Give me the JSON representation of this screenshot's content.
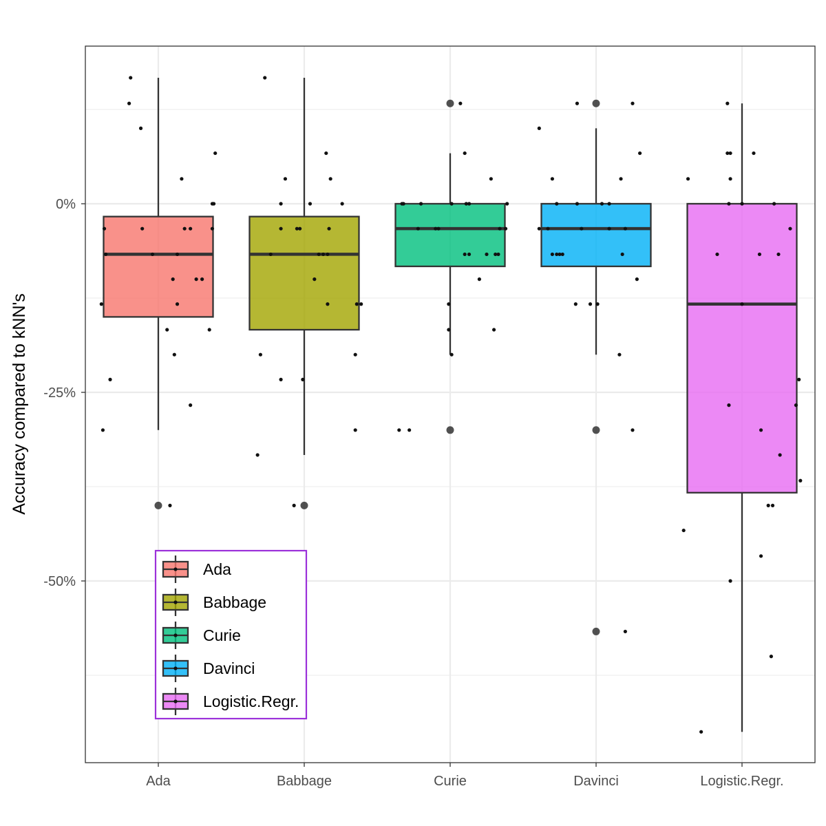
{
  "chart_data": {
    "type": "box",
    "title": "",
    "xlabel": "",
    "ylabel": "Accuracy compared to kNN's",
    "ylim": [
      -74,
      21
    ],
    "y_ticks": [
      0,
      -25,
      -50
    ],
    "y_tick_labels": [
      "0%",
      "-25%",
      "-50%"
    ],
    "y_minor_gridlines": [
      12.5,
      -12.5,
      -37.5,
      -62.5
    ],
    "grid": true,
    "legend": {
      "position": "inside-bottom-left",
      "border_color": "#9B30D9",
      "entries": [
        "Ada",
        "Babbage",
        "Curie",
        "Davinci",
        "Logistic.Regr."
      ]
    },
    "categories": [
      "Ada",
      "Babbage",
      "Curie",
      "Davinci",
      "Logistic.Regr."
    ],
    "colors": [
      "#F8766D",
      "#A3A500",
      "#00BF7D",
      "#00B0F6",
      "#E76BF3"
    ],
    "boxes": [
      {
        "name": "Ada",
        "whisker_low": -30,
        "q1": -15,
        "median": -6.7,
        "q3": -1.7,
        "whisker_high": 16.7,
        "outliers": [
          -40
        ]
      },
      {
        "name": "Babbage",
        "whisker_low": -33.3,
        "q1": -16.7,
        "median": -6.7,
        "q3": -1.7,
        "whisker_high": 16.7,
        "outliers": [
          -40
        ]
      },
      {
        "name": "Curie",
        "whisker_low": -20,
        "q1": -8.3,
        "median": -3.3,
        "q3": 0,
        "whisker_high": 6.7,
        "outliers": [
          13.3,
          -30
        ]
      },
      {
        "name": "Davinci",
        "whisker_low": -20,
        "q1": -8.3,
        "median": -3.3,
        "q3": 0,
        "whisker_high": 10,
        "outliers": [
          13.3,
          -30,
          -56.7
        ]
      },
      {
        "name": "Logistic.Regr.",
        "whisker_low": -70,
        "q1": -38.3,
        "median": -13.3,
        "q3": 0,
        "whisker_high": 13.3,
        "outliers": []
      }
    ],
    "points": [
      {
        "cat": 0,
        "jitter": -0.19,
        "value": 16.7
      },
      {
        "cat": 0,
        "jitter": -0.2,
        "value": 13.3
      },
      {
        "cat": 0,
        "jitter": -0.12,
        "value": 10
      },
      {
        "cat": 0,
        "jitter": 0.39,
        "value": 6.7
      },
      {
        "cat": 0,
        "jitter": 0.16,
        "value": 3.3
      },
      {
        "cat": 0,
        "jitter": 0.37,
        "value": 0
      },
      {
        "cat": 0,
        "jitter": 0.38,
        "value": 0
      },
      {
        "cat": 0,
        "jitter": -0.37,
        "value": -3.3
      },
      {
        "cat": 0,
        "jitter": -0.11,
        "value": -3.3
      },
      {
        "cat": 0,
        "jitter": 0.18,
        "value": -3.3
      },
      {
        "cat": 0,
        "jitter": 0.22,
        "value": -3.3
      },
      {
        "cat": 0,
        "jitter": 0.37,
        "value": -3.3
      },
      {
        "cat": 0,
        "jitter": -0.36,
        "value": -6.7
      },
      {
        "cat": 0,
        "jitter": -0.04,
        "value": -6.7
      },
      {
        "cat": 0,
        "jitter": 0.13,
        "value": -6.7
      },
      {
        "cat": 0,
        "jitter": 0.1,
        "value": -10
      },
      {
        "cat": 0,
        "jitter": 0.26,
        "value": -10
      },
      {
        "cat": 0,
        "jitter": 0.3,
        "value": -10
      },
      {
        "cat": 0,
        "jitter": -0.39,
        "value": -13.3
      },
      {
        "cat": 0,
        "jitter": 0.13,
        "value": -13.3
      },
      {
        "cat": 0,
        "jitter": 0.06,
        "value": -16.7
      },
      {
        "cat": 0,
        "jitter": 0.35,
        "value": -16.7
      },
      {
        "cat": 0,
        "jitter": 0.11,
        "value": -20
      },
      {
        "cat": 0,
        "jitter": -0.33,
        "value": -23.3
      },
      {
        "cat": 0,
        "jitter": 0.22,
        "value": -26.7
      },
      {
        "cat": 0,
        "jitter": -0.38,
        "value": -30
      },
      {
        "cat": 0,
        "jitter": 0.08,
        "value": -40
      },
      {
        "cat": 1,
        "jitter": -0.27,
        "value": 16.7
      },
      {
        "cat": 1,
        "jitter": 0.15,
        "value": 6.7
      },
      {
        "cat": 1,
        "jitter": -0.13,
        "value": 3.3
      },
      {
        "cat": 1,
        "jitter": 0.18,
        "value": 3.3
      },
      {
        "cat": 1,
        "jitter": -0.16,
        "value": 0
      },
      {
        "cat": 1,
        "jitter": 0.04,
        "value": 0
      },
      {
        "cat": 1,
        "jitter": 0.26,
        "value": 0
      },
      {
        "cat": 1,
        "jitter": -0.16,
        "value": -3.3
      },
      {
        "cat": 1,
        "jitter": -0.05,
        "value": -3.3
      },
      {
        "cat": 1,
        "jitter": -0.03,
        "value": -3.3
      },
      {
        "cat": 1,
        "jitter": 0.17,
        "value": -3.3
      },
      {
        "cat": 1,
        "jitter": -0.23,
        "value": -6.7
      },
      {
        "cat": 1,
        "jitter": 0.1,
        "value": -6.7
      },
      {
        "cat": 1,
        "jitter": 0.13,
        "value": -6.7
      },
      {
        "cat": 1,
        "jitter": 0.16,
        "value": -6.7
      },
      {
        "cat": 1,
        "jitter": 0.07,
        "value": -10
      },
      {
        "cat": 1,
        "jitter": 0.16,
        "value": -13.3
      },
      {
        "cat": 1,
        "jitter": 0.36,
        "value": -13.3
      },
      {
        "cat": 1,
        "jitter": 0.39,
        "value": -13.3
      },
      {
        "cat": 1,
        "jitter": -0.3,
        "value": -20
      },
      {
        "cat": 1,
        "jitter": 0.35,
        "value": -20
      },
      {
        "cat": 1,
        "jitter": -0.16,
        "value": -23.3
      },
      {
        "cat": 1,
        "jitter": -0.01,
        "value": -23.3
      },
      {
        "cat": 1,
        "jitter": 0.35,
        "value": -30
      },
      {
        "cat": 1,
        "jitter": -0.32,
        "value": -33.3
      },
      {
        "cat": 1,
        "jitter": -0.07,
        "value": -40
      },
      {
        "cat": 2,
        "jitter": 0.07,
        "value": 13.3
      },
      {
        "cat": 2,
        "jitter": 0.1,
        "value": 6.7
      },
      {
        "cat": 2,
        "jitter": 0.28,
        "value": 3.3
      },
      {
        "cat": 2,
        "jitter": -0.33,
        "value": 0
      },
      {
        "cat": 2,
        "jitter": -0.32,
        "value": 0
      },
      {
        "cat": 2,
        "jitter": -0.2,
        "value": 0
      },
      {
        "cat": 2,
        "jitter": 0.01,
        "value": 0
      },
      {
        "cat": 2,
        "jitter": 0.11,
        "value": 0
      },
      {
        "cat": 2,
        "jitter": 0.13,
        "value": 0
      },
      {
        "cat": 2,
        "jitter": 0.39,
        "value": 0
      },
      {
        "cat": 2,
        "jitter": -0.22,
        "value": -3.3
      },
      {
        "cat": 2,
        "jitter": -0.1,
        "value": -3.3
      },
      {
        "cat": 2,
        "jitter": -0.08,
        "value": -3.3
      },
      {
        "cat": 2,
        "jitter": 0.34,
        "value": -3.3
      },
      {
        "cat": 2,
        "jitter": 0.38,
        "value": -3.3
      },
      {
        "cat": 2,
        "jitter": 0.1,
        "value": -6.7
      },
      {
        "cat": 2,
        "jitter": 0.13,
        "value": -6.7
      },
      {
        "cat": 2,
        "jitter": 0.25,
        "value": -6.7
      },
      {
        "cat": 2,
        "jitter": 0.31,
        "value": -6.7
      },
      {
        "cat": 2,
        "jitter": 0.33,
        "value": -6.7
      },
      {
        "cat": 2,
        "jitter": 0.2,
        "value": -10
      },
      {
        "cat": 2,
        "jitter": -0.01,
        "value": -13.3
      },
      {
        "cat": 2,
        "jitter": -0.01,
        "value": -16.7
      },
      {
        "cat": 2,
        "jitter": 0.3,
        "value": -16.7
      },
      {
        "cat": 2,
        "jitter": 0.01,
        "value": -20
      },
      {
        "cat": 2,
        "jitter": -0.35,
        "value": -30
      },
      {
        "cat": 2,
        "jitter": -0.28,
        "value": -30
      },
      {
        "cat": 3,
        "jitter": -0.13,
        "value": 13.3
      },
      {
        "cat": 3,
        "jitter": 0.25,
        "value": 13.3
      },
      {
        "cat": 3,
        "jitter": -0.39,
        "value": 10
      },
      {
        "cat": 3,
        "jitter": 0.3,
        "value": 6.7
      },
      {
        "cat": 3,
        "jitter": -0.3,
        "value": 3.3
      },
      {
        "cat": 3,
        "jitter": 0.17,
        "value": 3.3
      },
      {
        "cat": 3,
        "jitter": -0.27,
        "value": 0
      },
      {
        "cat": 3,
        "jitter": -0.13,
        "value": 0
      },
      {
        "cat": 3,
        "jitter": 0.04,
        "value": 0
      },
      {
        "cat": 3,
        "jitter": 0.09,
        "value": 0
      },
      {
        "cat": 3,
        "jitter": -0.39,
        "value": -3.3
      },
      {
        "cat": 3,
        "jitter": -0.33,
        "value": -3.3
      },
      {
        "cat": 3,
        "jitter": -0.1,
        "value": -3.3
      },
      {
        "cat": 3,
        "jitter": 0.09,
        "value": -3.3
      },
      {
        "cat": 3,
        "jitter": 0.2,
        "value": -3.3
      },
      {
        "cat": 3,
        "jitter": -0.3,
        "value": -6.7
      },
      {
        "cat": 3,
        "jitter": -0.27,
        "value": -6.7
      },
      {
        "cat": 3,
        "jitter": -0.25,
        "value": -6.7
      },
      {
        "cat": 3,
        "jitter": -0.23,
        "value": -6.7
      },
      {
        "cat": 3,
        "jitter": 0.18,
        "value": -6.7
      },
      {
        "cat": 3,
        "jitter": 0.28,
        "value": -10
      },
      {
        "cat": 3,
        "jitter": -0.14,
        "value": -13.3
      },
      {
        "cat": 3,
        "jitter": -0.04,
        "value": -13.3
      },
      {
        "cat": 3,
        "jitter": 0.01,
        "value": -13.3
      },
      {
        "cat": 3,
        "jitter": 0.16,
        "value": -20
      },
      {
        "cat": 3,
        "jitter": 0.25,
        "value": -30
      },
      {
        "cat": 3,
        "jitter": 0.2,
        "value": -56.7
      },
      {
        "cat": 4,
        "jitter": -0.1,
        "value": 13.3
      },
      {
        "cat": 4,
        "jitter": -0.1,
        "value": 6.7
      },
      {
        "cat": 4,
        "jitter": -0.08,
        "value": 6.7
      },
      {
        "cat": 4,
        "jitter": 0.08,
        "value": 6.7
      },
      {
        "cat": 4,
        "jitter": -0.37,
        "value": 3.3
      },
      {
        "cat": 4,
        "jitter": -0.08,
        "value": 3.3
      },
      {
        "cat": 4,
        "jitter": -0.09,
        "value": 0
      },
      {
        "cat": 4,
        "jitter": 0.0,
        "value": 0
      },
      {
        "cat": 4,
        "jitter": 0.22,
        "value": 0
      },
      {
        "cat": 4,
        "jitter": 0.33,
        "value": -3.3
      },
      {
        "cat": 4,
        "jitter": -0.17,
        "value": -6.7
      },
      {
        "cat": 4,
        "jitter": 0.12,
        "value": -6.7
      },
      {
        "cat": 4,
        "jitter": 0.25,
        "value": -6.7
      },
      {
        "cat": 4,
        "jitter": 0.0,
        "value": -13.3
      },
      {
        "cat": 4,
        "jitter": 0.39,
        "value": -23.3
      },
      {
        "cat": 4,
        "jitter": -0.09,
        "value": -26.7
      },
      {
        "cat": 4,
        "jitter": 0.37,
        "value": -26.7
      },
      {
        "cat": 4,
        "jitter": 0.13,
        "value": -30
      },
      {
        "cat": 4,
        "jitter": 0.26,
        "value": -33.3
      },
      {
        "cat": 4,
        "jitter": 0.4,
        "value": -36.7
      },
      {
        "cat": 4,
        "jitter": 0.18,
        "value": -40
      },
      {
        "cat": 4,
        "jitter": 0.21,
        "value": -40
      },
      {
        "cat": 4,
        "jitter": -0.4,
        "value": -43.3
      },
      {
        "cat": 4,
        "jitter": 0.13,
        "value": -46.7
      },
      {
        "cat": 4,
        "jitter": -0.08,
        "value": -50
      },
      {
        "cat": 4,
        "jitter": 0.2,
        "value": -60
      },
      {
        "cat": 4,
        "jitter": -0.28,
        "value": -70
      }
    ]
  }
}
